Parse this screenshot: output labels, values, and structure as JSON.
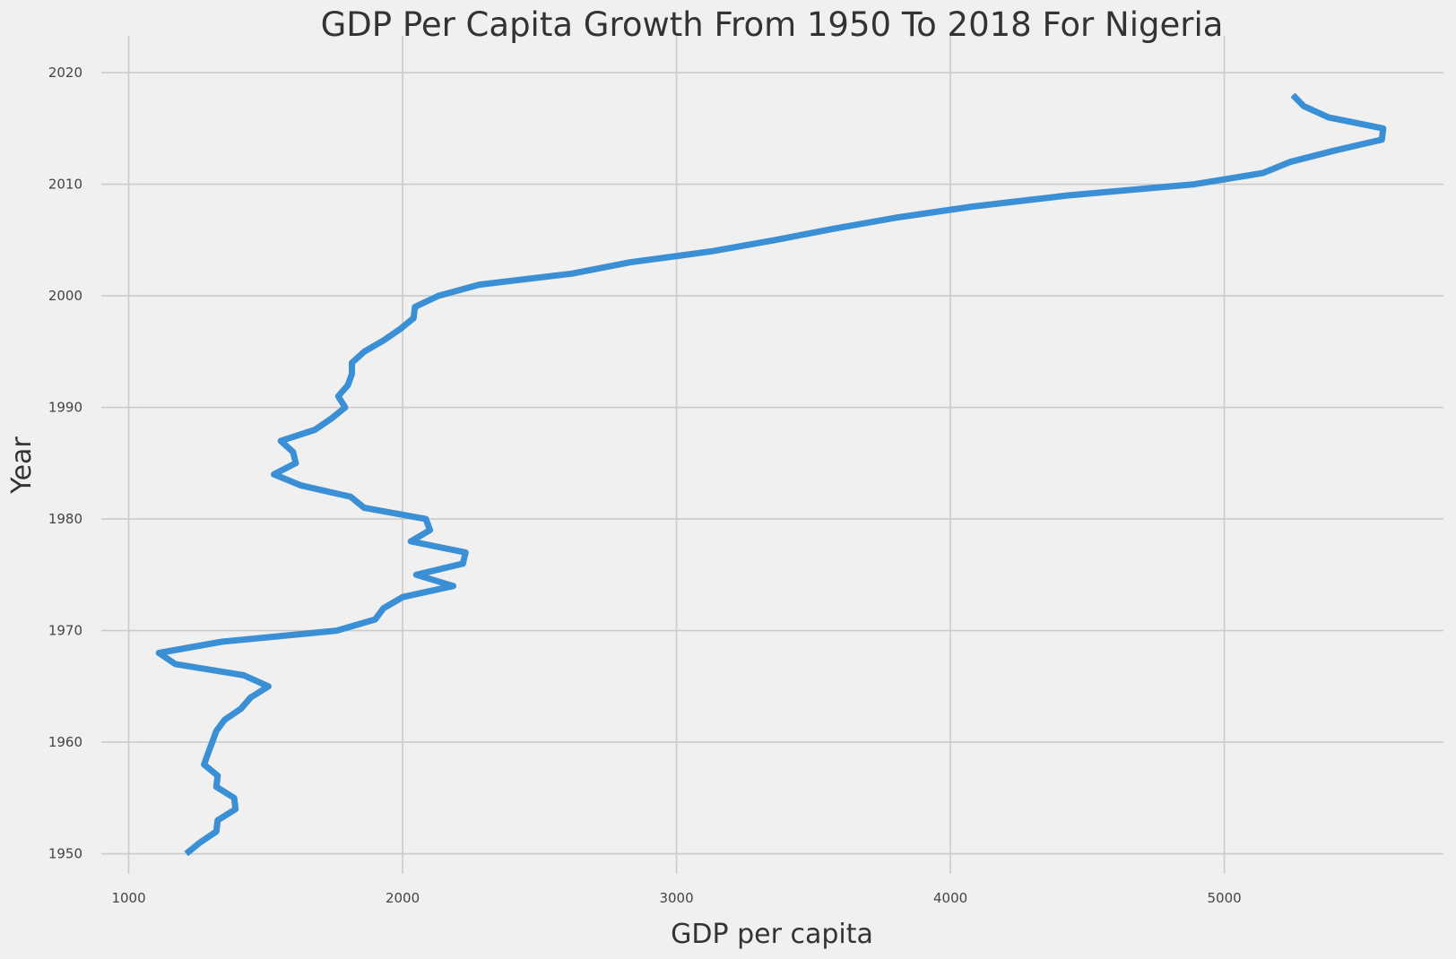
{
  "chart_data": {
    "type": "line",
    "title": "GDP Per Capita Growth From 1950 To 2018 For Nigeria",
    "xlabel": "GDP per capita",
    "ylabel": "Year",
    "xlim": [
      900,
      5800
    ],
    "ylim": [
      1948.2,
      2023.3
    ],
    "xticks": [
      1000,
      2000,
      3000,
      4000,
      5000
    ],
    "xtick_labels": [
      "1000",
      "2000",
      "3000",
      "4000",
      "5000"
    ],
    "yticks": [
      1950,
      1960,
      1970,
      1980,
      1990,
      2000,
      2010,
      2020
    ],
    "ytick_labels": [
      "1950",
      "1960",
      "1970",
      "1980",
      "1990",
      "2000",
      "2010",
      "2020"
    ],
    "grid": true,
    "color": "#3a8fd5",
    "series": [
      {
        "points": [
          [
            1210,
            1950
          ],
          [
            1260,
            1951
          ],
          [
            1320,
            1952
          ],
          [
            1325,
            1953
          ],
          [
            1390,
            1954
          ],
          [
            1385,
            1955
          ],
          [
            1320,
            1956
          ],
          [
            1325,
            1957
          ],
          [
            1275,
            1958
          ],
          [
            1290,
            1959
          ],
          [
            1305,
            1960
          ],
          [
            1320,
            1961
          ],
          [
            1350,
            1962
          ],
          [
            1410,
            1963
          ],
          [
            1445,
            1964
          ],
          [
            1510,
            1965
          ],
          [
            1420,
            1966
          ],
          [
            1170,
            1967
          ],
          [
            1110,
            1968
          ],
          [
            1340,
            1969
          ],
          [
            1760,
            1970
          ],
          [
            1900,
            1971
          ],
          [
            1930,
            1972
          ],
          [
            2000,
            1973
          ],
          [
            2185,
            1974
          ],
          [
            2050,
            1975
          ],
          [
            2220,
            1976
          ],
          [
            2230,
            1977
          ],
          [
            2030,
            1978
          ],
          [
            2100,
            1979
          ],
          [
            2085,
            1980
          ],
          [
            1860,
            1981
          ],
          [
            1810,
            1982
          ],
          [
            1630,
            1983
          ],
          [
            1530,
            1984
          ],
          [
            1610,
            1985
          ],
          [
            1600,
            1986
          ],
          [
            1555,
            1987
          ],
          [
            1680,
            1988
          ],
          [
            1740,
            1989
          ],
          [
            1790,
            1990
          ],
          [
            1765,
            1991
          ],
          [
            1800,
            1992
          ],
          [
            1815,
            1993
          ],
          [
            1815,
            1994
          ],
          [
            1860,
            1995
          ],
          [
            1930,
            1996
          ],
          [
            1990,
            1997
          ],
          [
            2040,
            1998
          ],
          [
            2045,
            1999
          ],
          [
            2130,
            2000
          ],
          [
            2280,
            2001
          ],
          [
            2620,
            2002
          ],
          [
            2830,
            2003
          ],
          [
            3130,
            2004
          ],
          [
            3360,
            2005
          ],
          [
            3570,
            2006
          ],
          [
            3800,
            2007
          ],
          [
            4080,
            2008
          ],
          [
            4430,
            2009
          ],
          [
            4890,
            2010
          ],
          [
            5140,
            2011
          ],
          [
            5240,
            2012
          ],
          [
            5400,
            2013
          ],
          [
            5575,
            2014
          ],
          [
            5580,
            2015
          ],
          [
            5380,
            2016
          ],
          [
            5290,
            2017
          ],
          [
            5250,
            2018
          ]
        ]
      }
    ]
  }
}
